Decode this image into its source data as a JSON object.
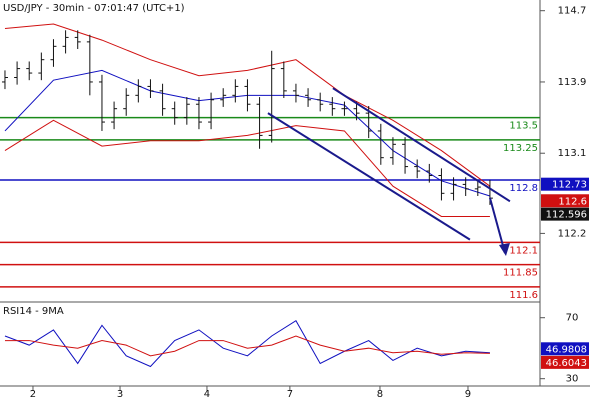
{
  "chart_data": [
    {
      "type": "ohlc",
      "title": "USD/JPY - 30min - 07:01:47 (UTC+1)",
      "xlim": [
        -0.41,
        44.13
      ],
      "xticks": [
        {
          "value": 2.31,
          "label": "2"
        },
        {
          "value": 9.49,
          "label": "3"
        },
        {
          "value": 16.66,
          "label": "4"
        },
        {
          "value": 23.5,
          "label": "7"
        },
        {
          "value": 30.93,
          "label": "8"
        },
        {
          "value": 38.19,
          "label": "9"
        }
      ],
      "ylim": [
        111.43,
        114.82
      ],
      "yticks": [
        114.7,
        113.9,
        113.1,
        112.2
      ],
      "open": [
        113.9,
        113.95,
        114.05,
        114.0,
        114.15,
        114.3,
        114.4,
        114.35,
        113.9,
        113.45,
        113.6,
        113.75,
        113.85,
        113.8,
        113.6,
        113.5,
        113.65,
        113.45,
        113.7,
        113.75,
        113.85,
        113.65,
        113.3,
        114.05,
        113.8,
        113.75,
        113.7,
        113.65,
        113.6,
        113.6,
        113.55,
        113.35,
        113.05,
        113.2,
        112.95,
        112.9,
        112.85,
        112.65,
        112.75,
        112.7,
        112.72
      ],
      "high": [
        114.03,
        114.13,
        114.13,
        114.23,
        114.38,
        114.48,
        114.48,
        114.43,
        113.98,
        113.68,
        113.83,
        113.93,
        113.93,
        113.88,
        113.68,
        113.73,
        113.73,
        113.78,
        113.83,
        113.93,
        113.93,
        113.73,
        114.25,
        114.13,
        113.88,
        113.83,
        113.78,
        113.73,
        113.68,
        113.68,
        113.63,
        113.43,
        113.28,
        113.28,
        113.03,
        112.98,
        112.93,
        112.83,
        112.83,
        112.8,
        112.8
      ],
      "low": [
        113.82,
        113.87,
        113.92,
        113.92,
        114.07,
        114.22,
        114.27,
        113.75,
        113.35,
        113.37,
        113.52,
        113.67,
        113.72,
        113.52,
        113.42,
        113.42,
        113.37,
        113.37,
        113.62,
        113.67,
        113.57,
        113.15,
        113.22,
        113.72,
        113.67,
        113.62,
        113.57,
        113.52,
        113.52,
        113.47,
        113.27,
        112.97,
        112.97,
        112.87,
        112.82,
        112.77,
        112.57,
        112.57,
        112.62,
        112.62,
        112.52
      ],
      "close": [
        113.95,
        114.05,
        114.0,
        114.15,
        114.3,
        114.4,
        114.35,
        113.9,
        113.45,
        113.6,
        113.75,
        113.85,
        113.8,
        113.6,
        113.5,
        113.65,
        113.45,
        113.7,
        113.75,
        113.85,
        113.65,
        113.3,
        114.05,
        113.8,
        113.75,
        113.7,
        113.65,
        113.6,
        113.6,
        113.55,
        113.35,
        113.05,
        113.2,
        112.95,
        112.9,
        112.85,
        112.65,
        112.75,
        112.7,
        112.72,
        112.596
      ],
      "bar_color": "#111111",
      "lines": [
        {
          "color": "#d01010",
          "x": [
            0,
            4,
            8,
            12,
            16,
            20,
            24,
            28,
            32,
            36,
            40
          ],
          "values": [
            114.5,
            114.55,
            114.37,
            114.15,
            113.97,
            114.03,
            114.15,
            113.75,
            113.47,
            113.13,
            112.73
          ]
        },
        {
          "color": "#d01010",
          "x": [
            0,
            4,
            8,
            12,
            16,
            20,
            24,
            28,
            32,
            36,
            40
          ],
          "values": [
            113.13,
            113.47,
            113.18,
            113.24,
            113.24,
            113.3,
            113.41,
            113.35,
            112.73,
            112.39,
            112.39
          ]
        },
        {
          "color": "#1010c0",
          "x": [
            0,
            4,
            8,
            12,
            16,
            20,
            24,
            28,
            32,
            36,
            40
          ],
          "values": [
            113.35,
            113.92,
            114.03,
            113.8,
            113.69,
            113.75,
            113.75,
            113.64,
            113.13,
            112.79,
            112.62
          ]
        }
      ],
      "channels": [
        {
          "color": "#1a1a8c",
          "x": [
            27.05,
            41.65
          ],
          "values": [
            113.83,
            112.56
          ]
        },
        {
          "color": "#1a1a8c",
          "x": [
            21.69,
            38.35
          ],
          "values": [
            113.55,
            112.13
          ]
        }
      ],
      "arrow": {
        "color": "#1a1a8c",
        "x": [
          40,
          41.24
        ],
        "values": [
          112.6,
          111.98
        ]
      },
      "levels": [
        {
          "value": 113.5,
          "color": "#1a8a1a"
        },
        {
          "value": 113.25,
          "color": "#1a8a1a"
        },
        {
          "value": 112.8,
          "color": "#1010c0"
        },
        {
          "value": 112.1,
          "color": "#d01010"
        },
        {
          "value": 111.85,
          "color": "#d01010"
        },
        {
          "value": 111.6,
          "color": "#d01010"
        }
      ],
      "price_tags": [
        {
          "value": 112.73,
          "color": "#1010c0"
        },
        {
          "value": 112.6,
          "color": "#d01010"
        },
        {
          "value": 112.596,
          "color": "#111111"
        }
      ]
    },
    {
      "type": "line",
      "title": "RSI14 - 9MA",
      "xlim": [
        -0.41,
        44.13
      ],
      "ylim": [
        25.2,
        80.3
      ],
      "yticks": [
        70,
        30
      ],
      "x": [
        0,
        2,
        4,
        6,
        8,
        10,
        12,
        14,
        16,
        18,
        20,
        22,
        24,
        26,
        28,
        30,
        32,
        34,
        36,
        38,
        40
      ],
      "series": [
        {
          "color": "#1010c0",
          "values": [
            58,
            52,
            62,
            40,
            65,
            45,
            38,
            55,
            62,
            50,
            45,
            58,
            68,
            40,
            48,
            55,
            42,
            50,
            45,
            48,
            46.9808
          ]
        },
        {
          "color": "#d01010",
          "values": [
            55,
            55,
            52,
            50,
            55,
            52,
            45,
            48,
            55,
            55,
            50,
            52,
            58,
            52,
            48,
            50,
            47,
            48,
            46,
            47,
            46.6043
          ]
        }
      ],
      "tags": [
        {
          "value": 46.9808,
          "color": "#1010c0"
        },
        {
          "value": 46.6043,
          "color": "#d01010"
        }
      ]
    }
  ]
}
